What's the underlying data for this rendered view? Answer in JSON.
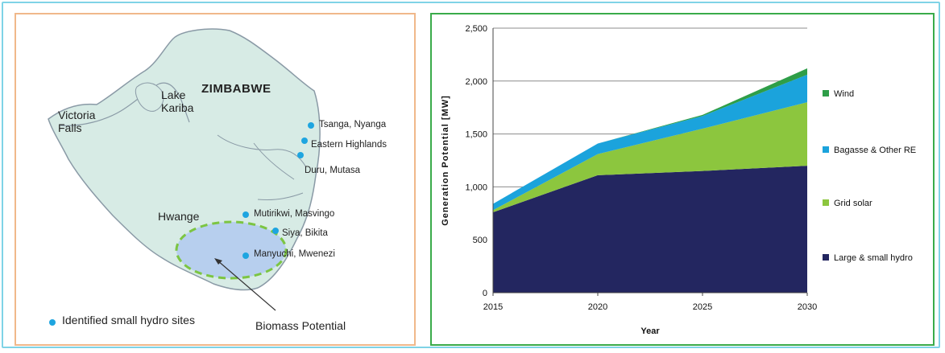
{
  "map": {
    "country": "ZIMBABWE",
    "places": {
      "victoria_falls": "Victoria\nFalls",
      "lake_kariba": "Lake\nKariba",
      "hwange": "Hwange"
    },
    "sites": [
      {
        "name": "Tsanga, Nyanga"
      },
      {
        "name": "Eastern Highlands"
      },
      {
        "name": "Duru, Mutasa"
      },
      {
        "name": "Mutirikwi, Masvingo"
      },
      {
        "name": "Siya, Bikita"
      },
      {
        "name": "Manyuchi, Mwenezi"
      }
    ],
    "legend_label": "Identified small hydro sites",
    "biomass_label": "Biomass Potential",
    "colors": {
      "land": "#d7ebe5",
      "border": "#8a9aa6",
      "site_dot": "#1ea5e0",
      "biomass_fill": "#b7cfee",
      "biomass_border": "#7cc542"
    }
  },
  "chart_data": {
    "type": "area",
    "stacked": true,
    "x": [
      2015,
      2020,
      2025,
      2030
    ],
    "series": [
      {
        "name": "Large & small hydro",
        "values": [
          760,
          1110,
          1150,
          1200
        ],
        "color": "#232660"
      },
      {
        "name": "Grid solar",
        "values": [
          20,
          200,
          400,
          600
        ],
        "color": "#8cc63e"
      },
      {
        "name": "Bagasse & Other RE",
        "values": [
          60,
          100,
          120,
          260
        ],
        "color": "#1ba3dc"
      },
      {
        "name": "Wind",
        "values": [
          0,
          0,
          10,
          60
        ],
        "color": "#2e9e48"
      }
    ],
    "xlabel": "Year",
    "ylabel": "Generation Potential [MW]",
    "ylim": [
      0,
      2500
    ],
    "yticks": [
      "0",
      "500",
      "1,000",
      "1,500",
      "2,000",
      "2,500"
    ],
    "xticks": [
      "2015",
      "2020",
      "2025",
      "2030"
    ],
    "grid": true,
    "legend_position": "right",
    "legend_order": [
      "Wind",
      "Bagasse & Other RE",
      "Grid solar",
      "Large & small hydro"
    ]
  }
}
